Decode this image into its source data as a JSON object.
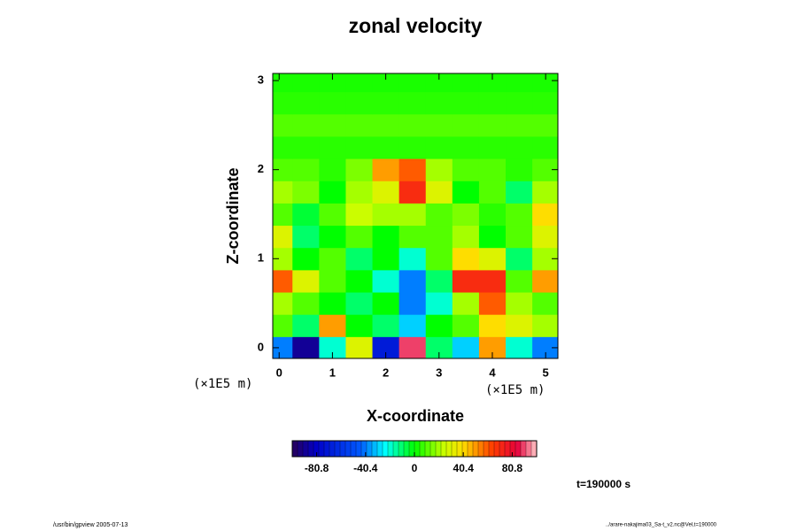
{
  "chart_data": {
    "type": "heatmap",
    "title": "zonal velocity",
    "xlabel": "X-coordinate",
    "ylabel": "Z-coordinate",
    "xunit": "(×1E5 m)",
    "yunit": "(×1E5 m)",
    "x": [
      0,
      0.5,
      1,
      1.5,
      2,
      2.5,
      3,
      3.5,
      4,
      4.5,
      5
    ],
    "y": [
      0,
      0.25,
      0.5,
      0.75,
      1,
      1.25,
      1.5,
      1.75,
      2,
      2.25,
      2.5,
      2.75,
      3
    ],
    "z": [
      [
        -40,
        -90,
        -20,
        30,
        -70,
        90,
        -10,
        -30,
        50,
        -20,
        -40
      ],
      [
        10,
        -10,
        50,
        0,
        -10,
        -30,
        0,
        10,
        40,
        30,
        20
      ],
      [
        20,
        10,
        0,
        -10,
        0,
        -40,
        -20,
        20,
        60,
        20,
        10
      ],
      [
        60,
        30,
        10,
        0,
        -20,
        -40,
        -10,
        70,
        70,
        10,
        50
      ],
      [
        20,
        0,
        10,
        -10,
        0,
        -20,
        10,
        40,
        30,
        -10,
        20
      ],
      [
        30,
        -10,
        0,
        10,
        0,
        10,
        10,
        20,
        0,
        10,
        30
      ],
      [
        10,
        -5,
        10,
        25,
        20,
        20,
        10,
        15,
        5,
        10,
        40
      ],
      [
        20,
        15,
        0,
        20,
        30,
        70,
        30,
        0,
        10,
        -10,
        20
      ],
      [
        10,
        10,
        5,
        15,
        50,
        60,
        20,
        10,
        10,
        5,
        10
      ],
      [
        5,
        5,
        5,
        5,
        5,
        5,
        5,
        5,
        5,
        5,
        5
      ],
      [
        10,
        10,
        10,
        10,
        10,
        10,
        10,
        10,
        10,
        10,
        10
      ],
      [
        5,
        5,
        5,
        5,
        5,
        5,
        5,
        5,
        5,
        5,
        5
      ],
      [
        3,
        3,
        3,
        3,
        3,
        3,
        3,
        3,
        3,
        3,
        3
      ]
    ],
    "xlim": [
      -0.12,
      5.23
    ],
    "ylim": [
      -0.12,
      3.08
    ],
    "xticks": [
      0,
      1,
      2,
      3,
      4,
      5
    ],
    "yticks": [
      0,
      1,
      2,
      3
    ],
    "clim": [
      -101,
      101
    ],
    "cticks": [
      -80.8,
      -40.4,
      0,
      40.4,
      80.8
    ],
    "time_label": "t=190000 s",
    "footer_left": "/usr/bin/gpview 2005-07-13",
    "footer_right": "../arare-nakajima03_Sa-t_v2.nc@Vel,t=190000"
  }
}
